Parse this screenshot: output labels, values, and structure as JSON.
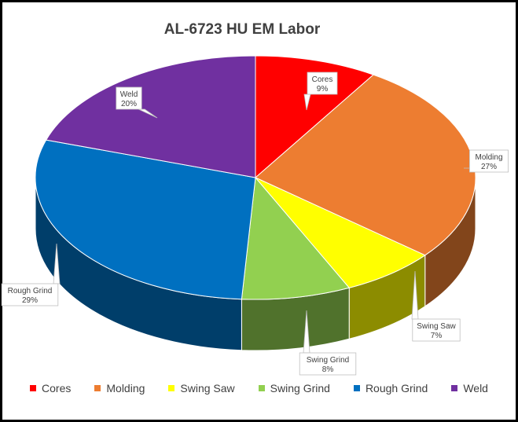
{
  "chart_data": {
    "type": "pie",
    "title": "AL-6723 HU EM Labor",
    "style": "3d",
    "legend_position": "bottom",
    "slices": [
      {
        "label": "Cores",
        "value": 9,
        "display": "9%",
        "color": "#FF0000"
      },
      {
        "label": "Molding",
        "value": 27,
        "display": "27%",
        "color": "#ED7D31"
      },
      {
        "label": "Swing Saw",
        "value": 7,
        "display": "7%",
        "color": "#FFFF00"
      },
      {
        "label": "Swing Grind",
        "value": 8,
        "display": "8%",
        "color": "#92D050"
      },
      {
        "label": "Rough Grind",
        "value": 29,
        "display": "29%",
        "color": "#0070C0"
      },
      {
        "label": "Weld",
        "value": 20,
        "display": "20%",
        "color": "#7030A0"
      }
    ]
  }
}
